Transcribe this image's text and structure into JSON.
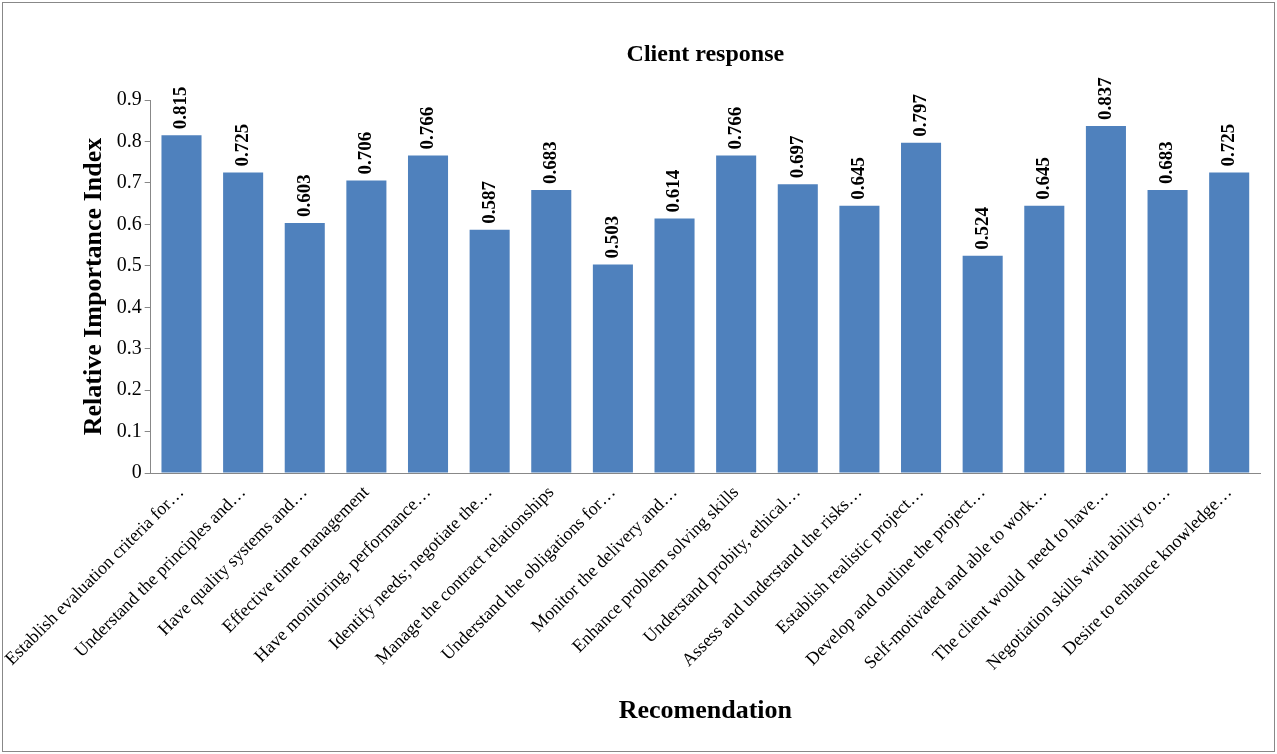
{
  "chart_data": {
    "type": "bar",
    "title": "Client response",
    "xlabel": "Recomendation",
    "ylabel": "Relative Importance Index",
    "categories": [
      "Establish evaluation criteria for…",
      "Understand the principles and…",
      "Have quality systems and…",
      "Effective time management",
      "Have monitoring, performance…",
      "Identify needs; negotiate the…",
      "Manage the contract relationships",
      "Understand the obligations for…",
      "Monitor the delivery and…",
      "Enhance problem solving skills",
      "Understand probity, ethical…",
      "Assess and understand the risks…",
      "Establish realistic project…",
      "Develop and outline the project…",
      "Self-motivated and able to work…",
      "The client would  need to have…",
      "Negotiation skills with ability to…",
      "Desire to enhance knowledge…"
    ],
    "values": [
      0.815,
      0.725,
      0.603,
      0.706,
      0.766,
      0.587,
      0.683,
      0.503,
      0.614,
      0.766,
      0.697,
      0.645,
      0.797,
      0.524,
      0.645,
      0.837,
      0.683,
      0.725
    ],
    "color": "#4f81bd",
    "ylim": [
      0,
      0.9
    ],
    "yticks": [
      0,
      0.1,
      0.2,
      0.3,
      0.4,
      0.5,
      0.6,
      0.7,
      0.8,
      0.9
    ],
    "data_labels": true
  }
}
